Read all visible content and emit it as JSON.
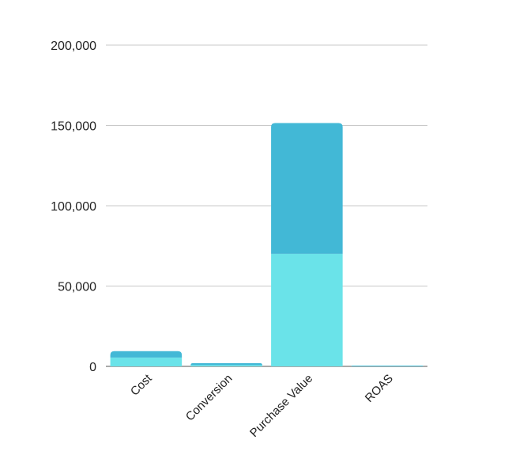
{
  "chart_data": {
    "type": "bar",
    "stacked": true,
    "categories": [
      "Cost",
      "Conversion",
      "Purchase Value",
      "ROAS"
    ],
    "series": [
      {
        "values": [
          5500,
          800,
          70000,
          100
        ],
        "color": "#6ae3e9"
      },
      {
        "values": [
          4000,
          1200,
          81500,
          200
        ],
        "color": "#42b8d6"
      }
    ],
    "y_ticks": [
      "0",
      "50,000",
      "100,000",
      "150,000",
      "200,000"
    ],
    "ylim": [
      0,
      200000
    ],
    "grid": true,
    "legend": false
  }
}
